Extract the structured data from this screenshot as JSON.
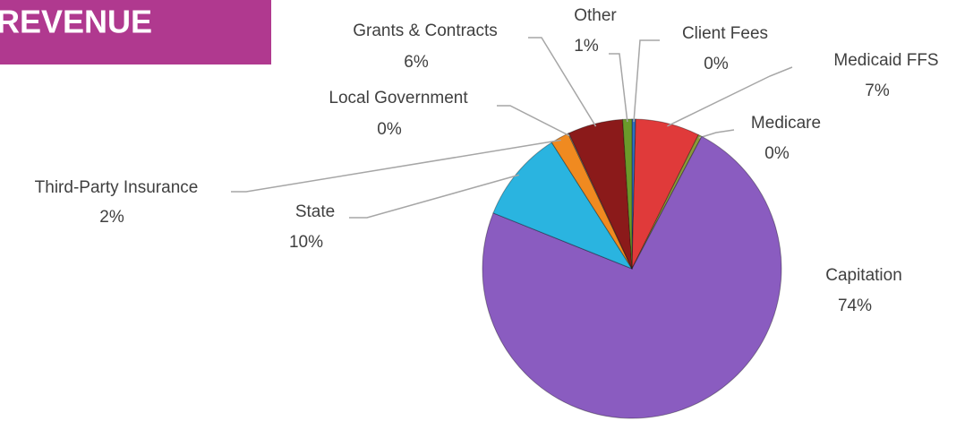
{
  "chart_data": {
    "type": "pie",
    "title": "REVENUE",
    "categories": [
      "Client Fees",
      "Medicaid FFS",
      "Medicare",
      "Capitation",
      "State",
      "Third-Party Insurance",
      "Local Government",
      "Grants & Contracts",
      "Other"
    ],
    "values": [
      0.4,
      7,
      0.4,
      74,
      10,
      2,
      0.1,
      6,
      1
    ],
    "value_labels": [
      "0%",
      "7%",
      "0%",
      "74%",
      "10%",
      "2%",
      "0%",
      "6%",
      "1%"
    ],
    "colors": [
      "#2e6fbf",
      "#e03a3a",
      "#8a9a3a",
      "#8a5cc0",
      "#2ab4e0",
      "#f08a20",
      "#a0a0a0",
      "#8b1a1a",
      "#6a9a2a"
    ]
  }
}
